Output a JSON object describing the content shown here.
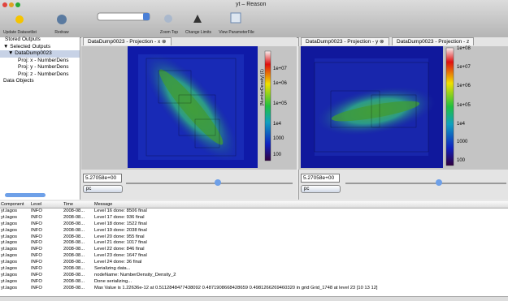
{
  "window": {
    "title": "yt – Reason"
  },
  "toolbar": [
    "Update Datasetlist",
    "Redraw",
    "Zoom Top",
    "Change Limits",
    "View ParameterFile"
  ],
  "tree": [
    "Stored Outputs",
    "Selected Outputs",
    "DataDump0023",
    "Proj: x - NumberDens",
    "Proj: y - NumberDens",
    "Proj: z - NumberDens",
    "Data Objects"
  ],
  "left_view": {
    "tab": "DataDump0023 - Projection - x",
    "colorbar": [
      "1e+07",
      "1e+06",
      "1e+05",
      "1e4",
      "1000",
      "100"
    ],
    "colorbar_label": "[NumberDensity] (1)",
    "width": "5.27058e+00",
    "unit": "pc"
  },
  "right_view": {
    "tabs": [
      "DataDump0023 - Projection - y",
      "DataDump0023 - Projection - z"
    ],
    "colorbar": [
      "1e+08",
      "1e+07",
      "1e+06",
      "1e+05",
      "1e4",
      "1000",
      "100"
    ],
    "width": "5.27058e+00",
    "unit": "pc"
  },
  "log": {
    "columns": [
      "Component",
      "Level",
      "Time",
      "Message"
    ],
    "rows": [
      [
        "yt.lagos",
        "INFO",
        "2008-08...",
        "Level 16 done: 8506 final"
      ],
      [
        "yt.lagos",
        "INFO",
        "2008-08...",
        "Level 17 done: 936 final"
      ],
      [
        "yt.lagos",
        "INFO",
        "2008-08...",
        "Level 18 done: 1522 final"
      ],
      [
        "yt.lagos",
        "INFO",
        "2008-08...",
        "Level 19 done: 2038 final"
      ],
      [
        "yt.lagos",
        "INFO",
        "2008-08...",
        "Level 20 done: 955 final"
      ],
      [
        "yt.lagos",
        "INFO",
        "2008-08...",
        "Level 21 done: 1017 final"
      ],
      [
        "yt.lagos",
        "INFO",
        "2008-08...",
        "Level 22 done: 846 final"
      ],
      [
        "yt.lagos",
        "INFO",
        "2008-08...",
        "Level 23 done: 1647 final"
      ],
      [
        "yt.lagos",
        "INFO",
        "2008-08...",
        "Level 24 done: 36 final"
      ],
      [
        "yt.lagos",
        "INFO",
        "2008-08...",
        "Serializing data..."
      ],
      [
        "yt.lagos",
        "INFO",
        "2008-08...",
        "nodeName: NumberDensity_Density_2"
      ],
      [
        "yt.lagos",
        "INFO",
        "2008-08...",
        "Done serializing..."
      ],
      [
        "yt.lagos",
        "INFO",
        "2008-08...",
        "Max Value is 1.22636e-12 at 0.5112848477438092 0.4871908668428659 0.4981266269460320 in grid Grid_1748 at level 23 [10 13 12]"
      ]
    ]
  }
}
